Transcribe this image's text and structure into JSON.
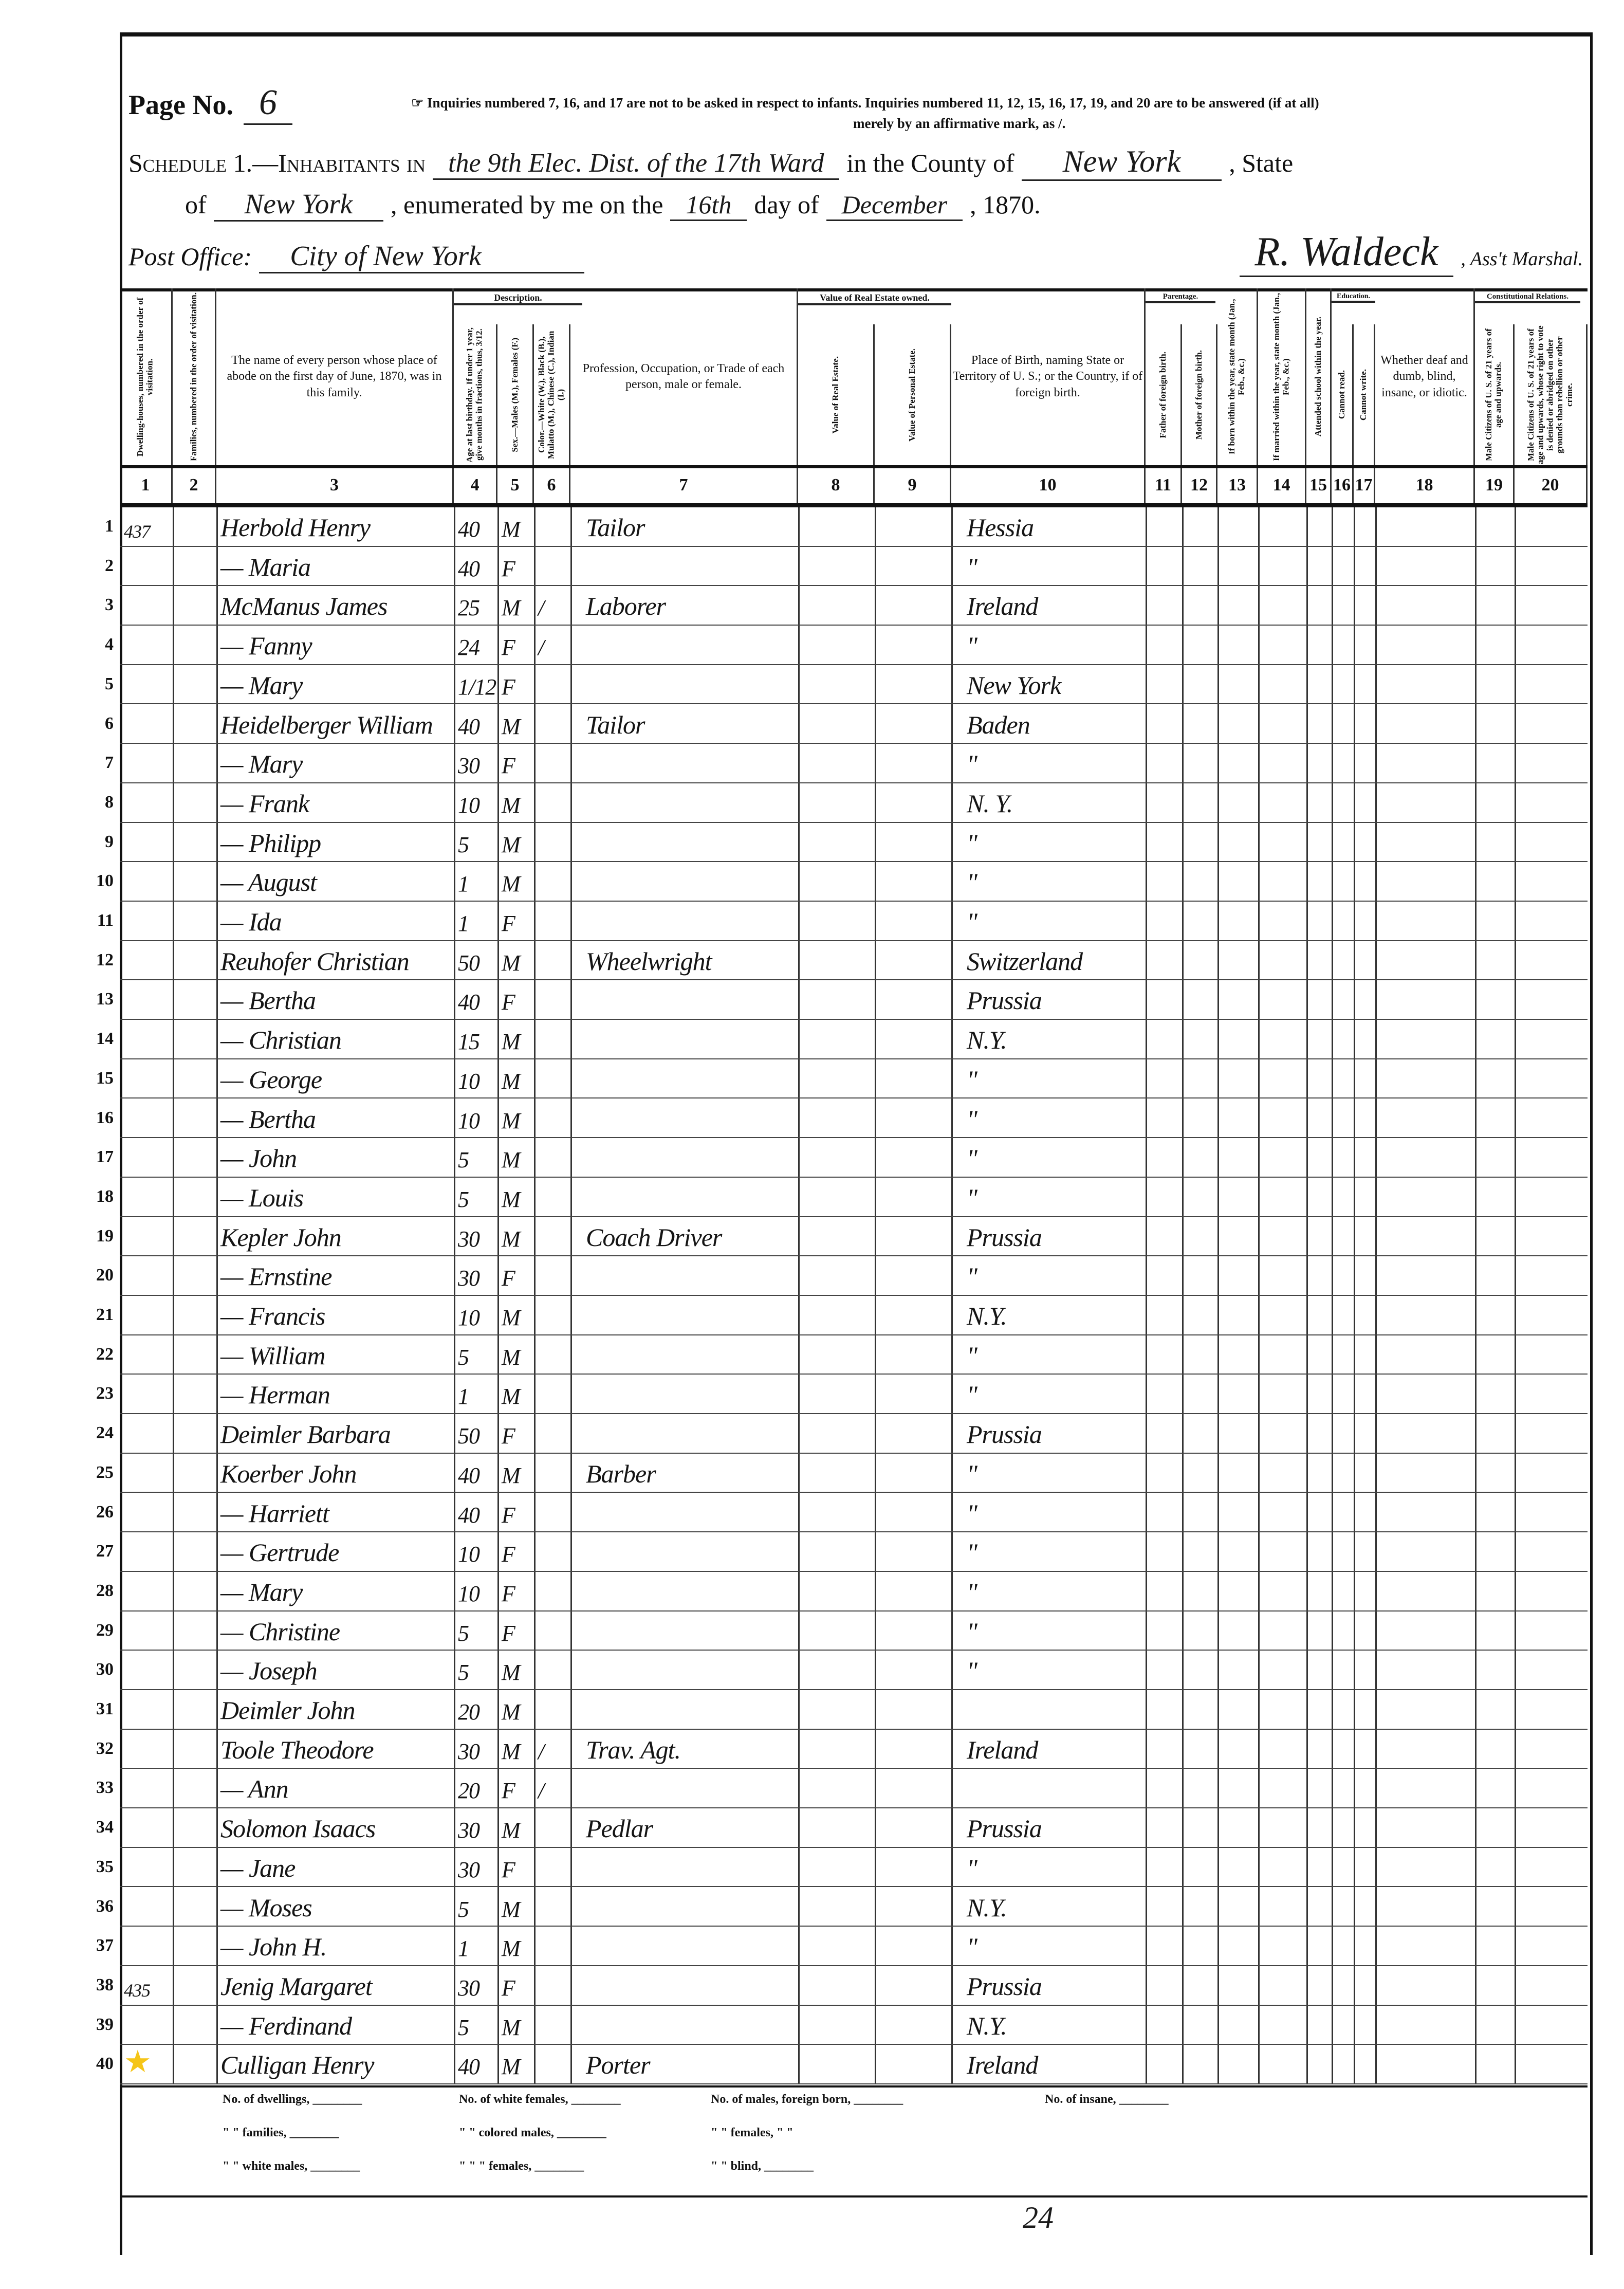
{
  "header": {
    "page_label": "Page No.",
    "page_number": "6",
    "instructions_line1": "☞ Inquiries numbered 7, 16, and 17 are not to be asked in respect to infants.   Inquiries numbered 11, 12, 15, 16, 17, 19, and 20 are to be answered (if at all)",
    "instructions_line2": "merely by an affirmative mark, as /.",
    "schedule_label": "Schedule 1.—Inhabitants in",
    "division": "the 9th Elec. Dist. of the 17th Ward",
    "county_label": "in the County of",
    "county": "New York",
    "state_label": ", State",
    "of_label": "of",
    "state": "New York",
    "enumerated_label": ", enumerated by me on the",
    "day": "16th",
    "day_of_label": "day of",
    "month": "December",
    "year": ", 1870.",
    "post_office_label": "Post Office:",
    "post_office": "City of New York",
    "marshal_signature": "R. Waldeck",
    "marshal_label": ", Ass't Marshal."
  },
  "groups": {
    "description": "Description.",
    "real_estate": "Value of Real Estate owned.",
    "parentage": "Parentage.",
    "education": "Education.",
    "constitutional": "Constitutional Relations."
  },
  "columns": [
    {
      "num": "1",
      "label": "Dwelling-houses, numbered in the order of visitation.",
      "vertical": true
    },
    {
      "num": "2",
      "label": "Families, numbered in the order of visitation.",
      "vertical": true
    },
    {
      "num": "3",
      "label": "The name of every person whose place of abode on the first day of June, 1870, was in this family.",
      "vertical": false
    },
    {
      "num": "4",
      "label": "Age at last birthday. If under 1 year, give months in fractions, thus, 3/12.",
      "vertical": true
    },
    {
      "num": "5",
      "label": "Sex.—Males (M.), Females (F.)",
      "vertical": true
    },
    {
      "num": "6",
      "label": "Color.—White (W.), Black (B.), Mulatto (M.), Chinese (C.), Indian (I.)",
      "vertical": true
    },
    {
      "num": "7",
      "label": "Profession, Occupation, or Trade of each person, male or female.",
      "vertical": false
    },
    {
      "num": "8",
      "label": "Value of Real Estate.",
      "vertical": true
    },
    {
      "num": "9",
      "label": "Value of Personal Estate.",
      "vertical": true
    },
    {
      "num": "10",
      "label": "Place of Birth, naming State or Territory of U. S.; or the Country, if of foreign birth.",
      "vertical": false
    },
    {
      "num": "11",
      "label": "Father of foreign birth.",
      "vertical": true
    },
    {
      "num": "12",
      "label": "Mother of foreign birth.",
      "vertical": true
    },
    {
      "num": "13",
      "label": "If born within the year, state month (Jan., Feb., &c.)",
      "vertical": true
    },
    {
      "num": "14",
      "label": "If married within the year, state month (Jan., Feb., &c.)",
      "vertical": true
    },
    {
      "num": "15",
      "label": "Attended school within the year.",
      "vertical": true
    },
    {
      "num": "16",
      "label": "Cannot read.",
      "vertical": true
    },
    {
      "num": "17",
      "label": "Cannot write.",
      "vertical": true
    },
    {
      "num": "18",
      "label": "Whether deaf and dumb, blind, insane, or idiotic.",
      "vertical": false
    },
    {
      "num": "19",
      "label": "Male Citizens of U. S. of 21 years of age and upwards.",
      "vertical": true
    },
    {
      "num": "20",
      "label": "Male Citizens of U. S. of 21 years of age and upwards, whose right to vote is denied or abridged on other grounds than rebellion or other crime.",
      "vertical": true
    }
  ],
  "rows": [
    {
      "n": "1",
      "dwelling": "437",
      "name": "Herbold Henry",
      "age": "40",
      "sex": "M",
      "color": "",
      "occupation": "Tailor",
      "birthplace": "Hessia"
    },
    {
      "n": "2",
      "dwelling": "",
      "name": "— Maria",
      "age": "40",
      "sex": "F",
      "color": "",
      "occupation": "",
      "birthplace": "\""
    },
    {
      "n": "3",
      "dwelling": "",
      "name": "McManus James",
      "age": "25",
      "sex": "M",
      "color": "/",
      "occupation": "Laborer",
      "birthplace": "Ireland"
    },
    {
      "n": "4",
      "dwelling": "",
      "name": "— Fanny",
      "age": "24",
      "sex": "F",
      "color": "/",
      "occupation": "",
      "birthplace": "\""
    },
    {
      "n": "5",
      "dwelling": "",
      "name": "— Mary",
      "age": "1/12",
      "sex": "F",
      "color": "",
      "occupation": "",
      "birthplace": "New York"
    },
    {
      "n": "6",
      "dwelling": "",
      "name": "Heidelberger William",
      "age": "40",
      "sex": "M",
      "color": "",
      "occupation": "Tailor",
      "birthplace": "Baden"
    },
    {
      "n": "7",
      "dwelling": "",
      "name": "— Mary",
      "age": "30",
      "sex": "F",
      "color": "",
      "occupation": "",
      "birthplace": "\""
    },
    {
      "n": "8",
      "dwelling": "",
      "name": "— Frank",
      "age": "10",
      "sex": "M",
      "color": "",
      "occupation": "",
      "birthplace": "N. Y."
    },
    {
      "n": "9",
      "dwelling": "",
      "name": "— Philipp",
      "age": "5",
      "sex": "M",
      "color": "",
      "occupation": "",
      "birthplace": "\""
    },
    {
      "n": "10",
      "dwelling": "",
      "name": "— August",
      "age": "1",
      "sex": "M",
      "color": "",
      "occupation": "",
      "birthplace": "\""
    },
    {
      "n": "11",
      "dwelling": "",
      "name": "— Ida",
      "age": "1",
      "sex": "F",
      "color": "",
      "occupation": "",
      "birthplace": "\""
    },
    {
      "n": "12",
      "dwelling": "",
      "name": "Reuhofer Christian",
      "age": "50",
      "sex": "M",
      "color": "",
      "occupation": "Wheelwright",
      "birthplace": "Switzerland"
    },
    {
      "n": "13",
      "dwelling": "",
      "name": "— Bertha",
      "age": "40",
      "sex": "F",
      "color": "",
      "occupation": "",
      "birthplace": "Prussia"
    },
    {
      "n": "14",
      "dwelling": "",
      "name": "— Christian",
      "age": "15",
      "sex": "M",
      "color": "",
      "occupation": "",
      "birthplace": "N.Y."
    },
    {
      "n": "15",
      "dwelling": "",
      "name": "— George",
      "age": "10",
      "sex": "M",
      "color": "",
      "occupation": "",
      "birthplace": "\""
    },
    {
      "n": "16",
      "dwelling": "",
      "name": "— Bertha",
      "age": "10",
      "sex": "M",
      "color": "",
      "occupation": "",
      "birthplace": "\""
    },
    {
      "n": "17",
      "dwelling": "",
      "name": "— John",
      "age": "5",
      "sex": "M",
      "color": "",
      "occupation": "",
      "birthplace": "\""
    },
    {
      "n": "18",
      "dwelling": "",
      "name": "— Louis",
      "age": "5",
      "sex": "M",
      "color": "",
      "occupation": "",
      "birthplace": "\""
    },
    {
      "n": "19",
      "dwelling": "",
      "name": "Kepler John",
      "age": "30",
      "sex": "M",
      "color": "",
      "occupation": "Coach Driver",
      "birthplace": "Prussia"
    },
    {
      "n": "20",
      "dwelling": "",
      "name": "— Ernstine",
      "age": "30",
      "sex": "F",
      "color": "",
      "occupation": "",
      "birthplace": "\""
    },
    {
      "n": "21",
      "dwelling": "",
      "name": "— Francis",
      "age": "10",
      "sex": "M",
      "color": "",
      "occupation": "",
      "birthplace": "N.Y."
    },
    {
      "n": "22",
      "dwelling": "",
      "name": "— William",
      "age": "5",
      "sex": "M",
      "color": "",
      "occupation": "",
      "birthplace": "\""
    },
    {
      "n": "23",
      "dwelling": "",
      "name": "— Herman",
      "age": "1",
      "sex": "M",
      "color": "",
      "occupation": "",
      "birthplace": "\""
    },
    {
      "n": "24",
      "dwelling": "",
      "name": "Deimler Barbara",
      "age": "50",
      "sex": "F",
      "color": "",
      "occupation": "",
      "birthplace": "Prussia"
    },
    {
      "n": "25",
      "dwelling": "",
      "name": "Koerber John",
      "age": "40",
      "sex": "M",
      "color": "",
      "occupation": "Barber",
      "birthplace": "\""
    },
    {
      "n": "26",
      "dwelling": "",
      "name": "— Harriett",
      "age": "40",
      "sex": "F",
      "color": "",
      "occupation": "",
      "birthplace": "\""
    },
    {
      "n": "27",
      "dwelling": "",
      "name": "— Gertrude",
      "age": "10",
      "sex": "F",
      "color": "",
      "occupation": "",
      "birthplace": "\""
    },
    {
      "n": "28",
      "dwelling": "",
      "name": "— Mary",
      "age": "10",
      "sex": "F",
      "color": "",
      "occupation": "",
      "birthplace": "\""
    },
    {
      "n": "29",
      "dwelling": "",
      "name": "— Christine",
      "age": "5",
      "sex": "F",
      "color": "",
      "occupation": "",
      "birthplace": "\""
    },
    {
      "n": "30",
      "dwelling": "",
      "name": "— Joseph",
      "age": "5",
      "sex": "M",
      "color": "",
      "occupation": "",
      "birthplace": "\""
    },
    {
      "n": "31",
      "dwelling": "",
      "name": "Deimler John",
      "age": "20",
      "sex": "M",
      "color": "",
      "occupation": "",
      "birthplace": ""
    },
    {
      "n": "32",
      "dwelling": "",
      "name": "Toole Theodore",
      "age": "30",
      "sex": "M",
      "color": "/",
      "occupation": "Trav. Agt.",
      "birthplace": "Ireland"
    },
    {
      "n": "33",
      "dwelling": "",
      "name": "— Ann",
      "age": "20",
      "sex": "F",
      "color": "/",
      "occupation": "",
      "birthplace": ""
    },
    {
      "n": "34",
      "dwelling": "",
      "name": "Solomon Isaacs",
      "age": "30",
      "sex": "M",
      "color": "",
      "occupation": "Pedlar",
      "birthplace": "Prussia"
    },
    {
      "n": "35",
      "dwelling": "",
      "name": "— Jane",
      "age": "30",
      "sex": "F",
      "color": "",
      "occupation": "",
      "birthplace": "\""
    },
    {
      "n": "36",
      "dwelling": "",
      "name": "— Moses",
      "age": "5",
      "sex": "M",
      "color": "",
      "occupation": "",
      "birthplace": "N.Y."
    },
    {
      "n": "37",
      "dwelling": "",
      "name": "— John H.",
      "age": "1",
      "sex": "M",
      "color": "",
      "occupation": "",
      "birthplace": "\""
    },
    {
      "n": "38",
      "dwelling": "435",
      "name": "Jenig Margaret",
      "age": "30",
      "sex": "F",
      "color": "",
      "occupation": "",
      "birthplace": "Prussia"
    },
    {
      "n": "39",
      "dwelling": "",
      "name": "— Ferdinand",
      "age": "5",
      "sex": "M",
      "color": "",
      "occupation": "",
      "birthplace": "N.Y."
    },
    {
      "n": "40",
      "dwelling": "★",
      "name": "Culligan Henry",
      "age": "40",
      "sex": "M",
      "color": "",
      "occupation": "Porter",
      "birthplace": "Ireland"
    }
  ],
  "highlight_color": "#f5c518",
  "footer": {
    "dwellings": "No. of dwellings, ________",
    "families": "\"   \"  families, ________",
    "white_males": "\"   \"  white males, ________",
    "white_females": "No. of white females, ________",
    "colored_males": "\"   \"  colored males, ________",
    "colored_females": "\"   \"  \"   females, ________",
    "foreign_males": "No. of males, foreign born, ________",
    "foreign_females": "\"   \"  females,  \"   \"",
    "blind": "\"   \"  blind, ________",
    "insane": "No. of insane, ________",
    "sheet_number": "24"
  }
}
